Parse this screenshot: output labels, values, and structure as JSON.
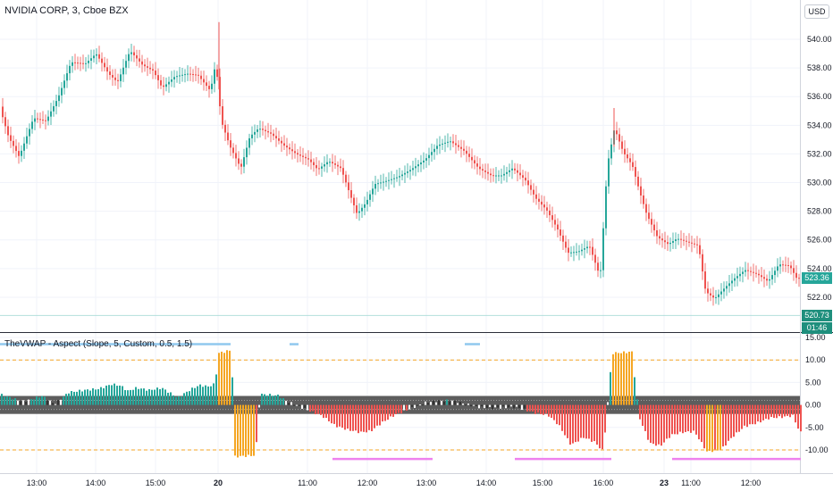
{
  "header": {
    "title": "NVIDIA CORP, 3, Cboe BZX",
    "currency_button": "USD"
  },
  "indicator": {
    "title": "TheVWAP - Aspect (Slope, 5, Custom, 0.5, 1.5)"
  },
  "colors": {
    "up": "#26a69a",
    "down": "#ef5350",
    "extreme": "#f5a623",
    "neutral_light": "#c8c8c8",
    "neutral_dark": "#555555",
    "band": "#e1e1e1",
    "last_price_badge": "#26a69a",
    "crosshair_badge": "#1f8f7d",
    "cyan_line": "#90c8ee",
    "magenta_line": "#ee82ee",
    "level_line": "#f5a623"
  },
  "badges": {
    "last_price": "523.36",
    "crosshair_price": "520.73",
    "countdown": "01:46"
  },
  "chart_data": [
    {
      "type": "candlestick",
      "ylim": [
        519.0,
        542.0
      ],
      "y_ticks": [
        "540.00",
        "538.00",
        "536.00",
        "534.00",
        "532.00",
        "530.00",
        "528.00",
        "526.00",
        "524.00",
        "522.00"
      ],
      "x_ticks": [
        "13:00",
        "14:00",
        "15:00",
        "20",
        "11:00",
        "12:00",
        "13:00",
        "14:00",
        "15:00",
        "16:00",
        "23",
        "11:00",
        "12:00"
      ],
      "grid": true,
      "crosshair_level": 520.73,
      "last_price": 523.36,
      "path_points": [
        [
          0,
          535.3
        ],
        [
          10,
          533.2
        ],
        [
          22,
          531.8
        ],
        [
          38,
          534.5
        ],
        [
          52,
          534.3
        ],
        [
          66,
          536.0
        ],
        [
          80,
          538.4
        ],
        [
          96,
          538.3
        ],
        [
          108,
          539.0
        ],
        [
          122,
          537.6
        ],
        [
          132,
          537.0
        ],
        [
          146,
          539.2
        ],
        [
          160,
          538.2
        ],
        [
          172,
          537.8
        ],
        [
          182,
          536.6
        ],
        [
          196,
          537.4
        ],
        [
          210,
          537.6
        ],
        [
          222,
          537.5
        ],
        [
          236,
          536.4
        ],
        [
          242,
          538.4
        ],
        [
          248,
          534.3
        ],
        [
          258,
          532.5
        ],
        [
          270,
          531.0
        ],
        [
          280,
          533.2
        ],
        [
          290,
          533.8
        ],
        [
          304,
          533.4
        ],
        [
          318,
          532.6
        ],
        [
          332,
          532.0
        ],
        [
          346,
          531.6
        ],
        [
          356,
          530.9
        ],
        [
          368,
          531.5
        ],
        [
          382,
          531.0
        ],
        [
          392,
          529.2
        ],
        [
          400,
          527.8
        ],
        [
          410,
          528.6
        ],
        [
          420,
          529.9
        ],
        [
          432,
          530.1
        ],
        [
          446,
          530.4
        ],
        [
          460,
          530.9
        ],
        [
          476,
          531.6
        ],
        [
          490,
          532.6
        ],
        [
          504,
          532.9
        ],
        [
          520,
          532.2
        ],
        [
          536,
          531.0
        ],
        [
          550,
          530.5
        ],
        [
          562,
          530.5
        ],
        [
          574,
          531.0
        ],
        [
          588,
          530.2
        ],
        [
          600,
          528.9
        ],
        [
          612,
          528.1
        ],
        [
          624,
          526.8
        ],
        [
          636,
          525.1
        ],
        [
          648,
          525.2
        ],
        [
          660,
          525.6
        ],
        [
          672,
          523.4
        ],
        [
          680,
          531.2
        ],
        [
          688,
          533.8
        ],
        [
          698,
          532.1
        ],
        [
          708,
          531.2
        ],
        [
          716,
          529.4
        ],
        [
          724,
          527.8
        ],
        [
          736,
          526.2
        ],
        [
          748,
          525.7
        ],
        [
          758,
          526.1
        ],
        [
          772,
          525.8
        ],
        [
          782,
          525.6
        ],
        [
          790,
          522.4
        ],
        [
          800,
          521.9
        ],
        [
          812,
          522.7
        ],
        [
          822,
          523.3
        ],
        [
          834,
          523.9
        ],
        [
          848,
          523.6
        ],
        [
          860,
          523.1
        ],
        [
          872,
          524.3
        ],
        [
          884,
          524.2
        ],
        [
          892,
          523.3
        ]
      ]
    },
    {
      "type": "bar",
      "ylim": [
        -15.0,
        15.0
      ],
      "y_ticks": [
        "15.00",
        "10.00",
        "5.00",
        "0.00",
        "-5.00",
        "-10.00"
      ],
      "grid": true,
      "reference_lines": [
        10.0,
        -10.0
      ],
      "neutral_band": [
        -2.0,
        2.0
      ],
      "bar_keypoints": [
        [
          0,
          2.3
        ],
        [
          14,
          1.4
        ],
        [
          24,
          0.8
        ],
        [
          32,
          1.1
        ],
        [
          46,
          2.0
        ],
        [
          60,
          0.2
        ],
        [
          76,
          2.8
        ],
        [
          94,
          3.3
        ],
        [
          110,
          3.6
        ],
        [
          124,
          4.6
        ],
        [
          134,
          4.3
        ],
        [
          142,
          3.1
        ],
        [
          152,
          3.8
        ],
        [
          166,
          3.3
        ],
        [
          180,
          3.8
        ],
        [
          198,
          1.6
        ],
        [
          212,
          3.4
        ],
        [
          222,
          4.4
        ],
        [
          232,
          4.1
        ],
        [
          240,
          4.7
        ],
        [
          243,
          11.5
        ],
        [
          258,
          12.2
        ],
        [
          262,
          -11.5
        ],
        [
          285,
          -11.2
        ],
        [
          290,
          2.4
        ],
        [
          310,
          2.1
        ],
        [
          320,
          0.8
        ],
        [
          344,
          -1.2
        ],
        [
          360,
          -2.5
        ],
        [
          374,
          -4.6
        ],
        [
          388,
          -5.5
        ],
        [
          402,
          -6.1
        ],
        [
          414,
          -5.8
        ],
        [
          426,
          -4.0
        ],
        [
          440,
          -2.3
        ],
        [
          462,
          -0.5
        ],
        [
          476,
          0.6
        ],
        [
          490,
          0.9
        ],
        [
          504,
          1.0
        ],
        [
          516,
          0.4
        ],
        [
          534,
          -0.5
        ],
        [
          548,
          -0.7
        ],
        [
          562,
          -0.6
        ],
        [
          576,
          -0.5
        ],
        [
          600,
          -1.9
        ],
        [
          612,
          -2.2
        ],
        [
          624,
          -4.4
        ],
        [
          638,
          -8.9
        ],
        [
          652,
          -7.2
        ],
        [
          664,
          -8.2
        ],
        [
          674,
          -10.3
        ],
        [
          684,
          11.5
        ],
        [
          706,
          11.8
        ],
        [
          714,
          -2.6
        ],
        [
          726,
          -8.5
        ],
        [
          738,
          -9.1
        ],
        [
          750,
          -6.7
        ],
        [
          762,
          -6.1
        ],
        [
          776,
          -5.9
        ],
        [
          790,
          -10.4
        ],
        [
          806,
          -9.9
        ],
        [
          818,
          -7.2
        ],
        [
          832,
          -4.8
        ],
        [
          846,
          -4.0
        ],
        [
          860,
          -2.9
        ],
        [
          874,
          -2.7
        ],
        [
          886,
          -2.4
        ],
        [
          894,
          -6.1
        ]
      ],
      "signal_segments": [
        {
          "color": "cyan",
          "value": 13.5,
          "x_from": 0,
          "x_to": 258
        },
        {
          "color": "cyan",
          "value": 13.5,
          "x_from": 324,
          "x_to": 334
        },
        {
          "color": "cyan",
          "value": 13.5,
          "x_from": 520,
          "x_to": 537
        },
        {
          "color": "magenta",
          "value": -12.0,
          "x_from": 372,
          "x_to": 484
        },
        {
          "color": "magenta",
          "value": -12.0,
          "x_from": 576,
          "x_to": 684
        },
        {
          "color": "magenta",
          "value": -12.0,
          "x_from": 752,
          "x_to": 896
        }
      ]
    }
  ]
}
